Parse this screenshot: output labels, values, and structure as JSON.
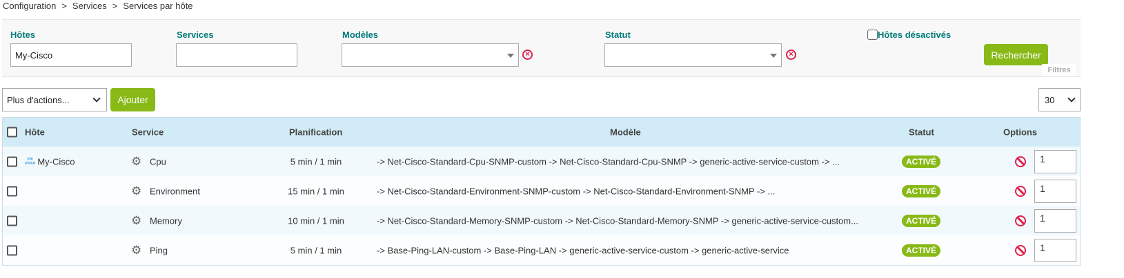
{
  "breadcrumb": [
    "Configuration",
    "Services",
    "Services par hôte"
  ],
  "filters": {
    "hosts_label": "Hôtes",
    "hosts_value": "My-Cisco",
    "services_label": "Services",
    "services_value": "",
    "templates_label": "Modèles",
    "templates_value": "",
    "status_label": "Statut",
    "status_value": "",
    "disabled_hosts_label": "Hôtes désactivés",
    "disabled_hosts_checked": false,
    "search_button": "Rechercher",
    "filters_tab": "Filtres"
  },
  "toolbar": {
    "more_actions": "Plus d'actions...",
    "add_button": "Ajouter",
    "per_page": "30"
  },
  "table": {
    "headers": {
      "host": "Hôte",
      "service": "Service",
      "schedule": "Planification",
      "template": "Modèle",
      "status": "Statut",
      "options": "Options"
    },
    "rows": [
      {
        "host": "My-Cisco",
        "service": "Cpu",
        "schedule": "5 min / 1 min",
        "template": "-> Net-Cisco-Standard-Cpu-SNMP-custom -> Net-Cisco-Standard-Cpu-SNMP -> generic-active-service-custom -> ...",
        "status": "ACTIVÉ",
        "option": "1"
      },
      {
        "host": "",
        "service": "Environment",
        "schedule": "15 min / 1 min",
        "template": "-> Net-Cisco-Standard-Environment-SNMP-custom -> Net-Cisco-Standard-Environment-SNMP -> ...",
        "status": "ACTIVÉ",
        "option": "1"
      },
      {
        "host": "",
        "service": "Memory",
        "schedule": "10 min / 1 min",
        "template": "-> Net-Cisco-Standard-Memory-SNMP-custom -> Net-Cisco-Standard-Memory-SNMP -> generic-active-service-custom...",
        "status": "ACTIVÉ",
        "option": "1"
      },
      {
        "host": "",
        "service": "Ping",
        "schedule": "5 min / 1 min",
        "template": "-> Base-Ping-LAN-custom -> Base-Ping-LAN -> generic-active-service-custom -> generic-active-service",
        "status": "ACTIVÉ",
        "option": "1"
      }
    ]
  },
  "colors": {
    "accent": "#88b917",
    "label": "#007c7a",
    "header_bg": "#d1ecf7",
    "danger": "#e0204a"
  }
}
